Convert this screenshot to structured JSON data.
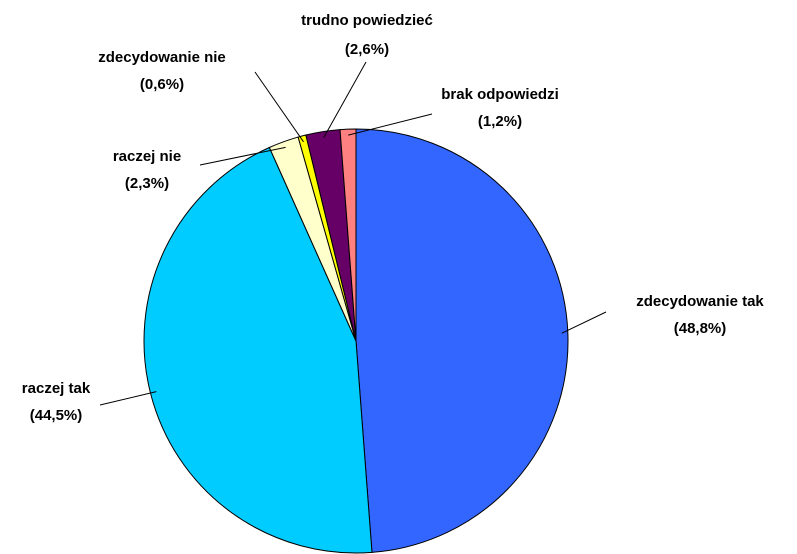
{
  "chart_data": {
    "type": "pie",
    "categories": [
      "zdecydowanie tak",
      "raczej tak",
      "raczej nie",
      "zdecydowanie nie",
      "trudno powiedzieć",
      "brak odpowiedzi"
    ],
    "values": [
      48.8,
      44.5,
      2.3,
      0.6,
      2.6,
      1.2
    ],
    "value_labels": [
      "(48,8%)",
      "(44,5%)",
      "(2,3%)",
      "(0,6%)",
      "(2,6%)",
      "(1,2%)"
    ],
    "colors": [
      "#3366ff",
      "#00ccff",
      "#ffffcc",
      "#ffff00",
      "#660066",
      "#ff8080"
    ]
  }
}
